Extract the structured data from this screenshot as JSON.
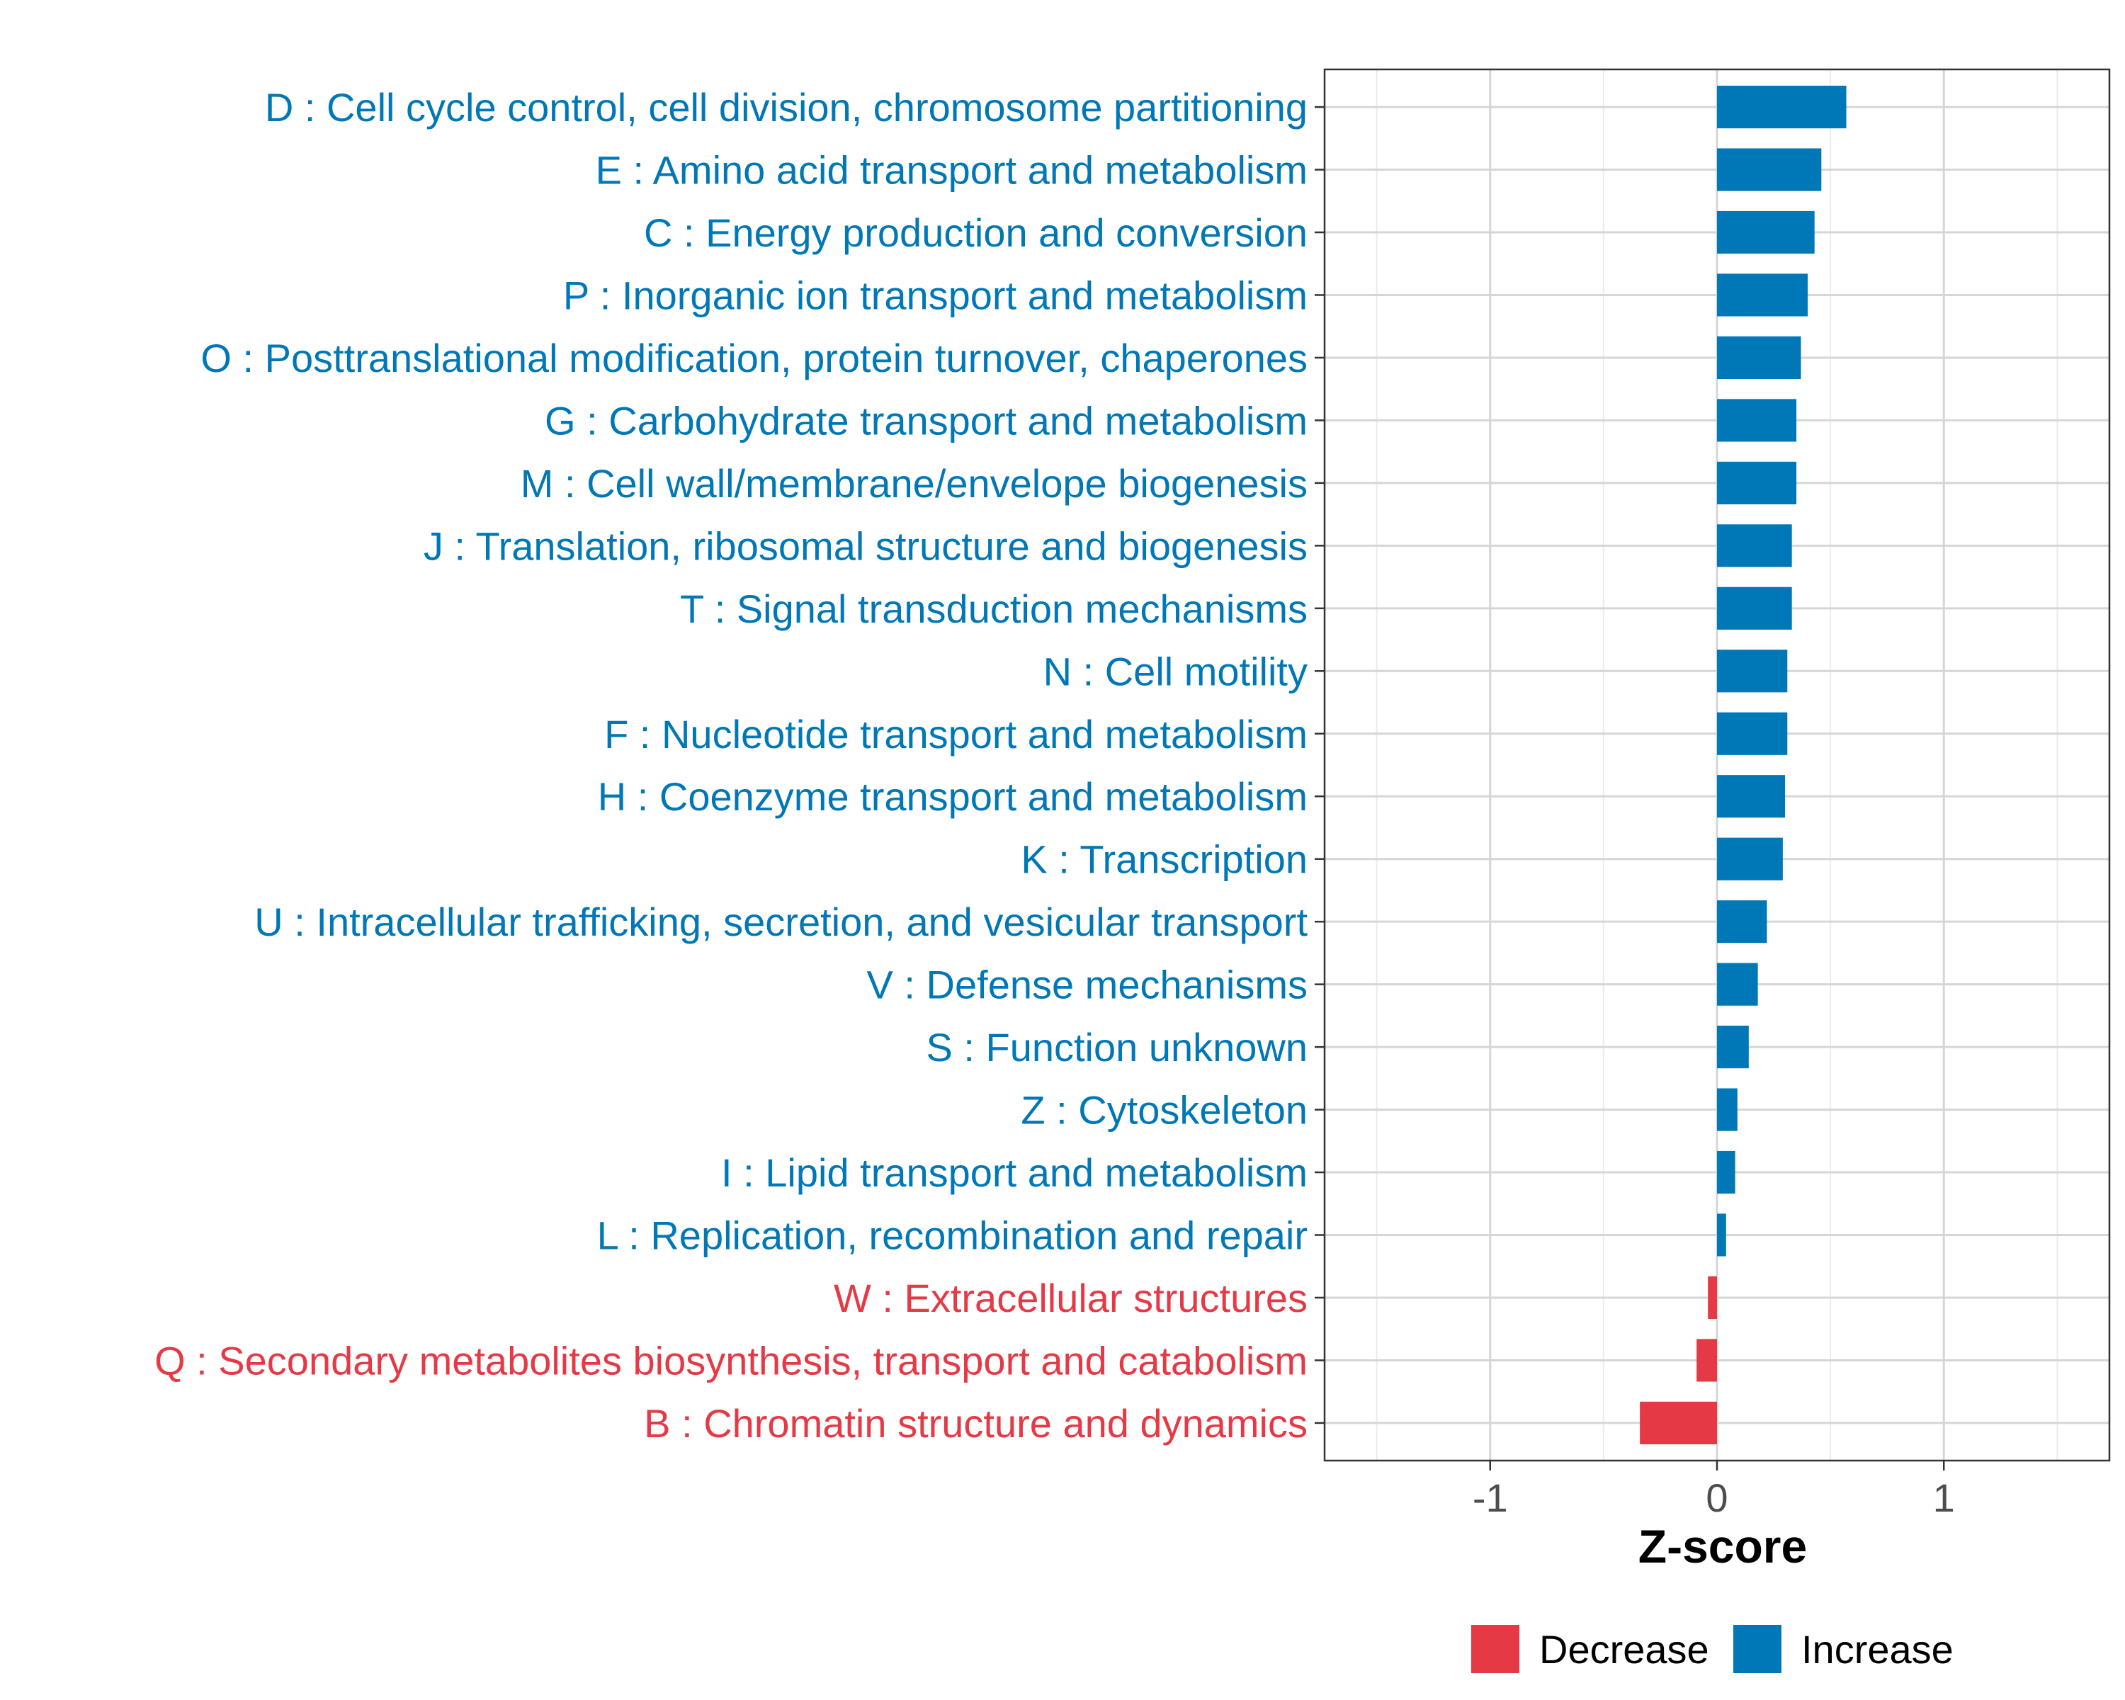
{
  "chart_data": {
    "type": "bar",
    "orientation": "horizontal",
    "title": "",
    "xlabel": "Z-score",
    "ylabel": "",
    "xlim": [
      -1.73,
      1.73
    ],
    "xticks": [
      -1,
      0,
      1
    ],
    "xtick_labels": [
      "-1",
      "0",
      "1"
    ],
    "grid": true,
    "legend_position": "bottom",
    "legend": [
      {
        "label": "Decrease",
        "color": "#E63946"
      },
      {
        "label": "Increase",
        "color": "#0077B6"
      }
    ],
    "categories": [
      "D : Cell cycle control, cell division, chromosome partitioning",
      "E : Amino acid transport and metabolism",
      "C : Energy production and conversion",
      "P : Inorganic ion transport and metabolism",
      "O : Posttranslational modification, protein turnover, chaperones",
      "G : Carbohydrate transport and metabolism",
      "M : Cell wall/membrane/envelope biogenesis",
      "J : Translation, ribosomal structure and biogenesis",
      "T : Signal transduction mechanisms",
      "N : Cell motility",
      "F : Nucleotide transport and metabolism",
      "H : Coenzyme transport and metabolism",
      "K : Transcription",
      "U : Intracellular trafficking, secretion, and vesicular transport",
      "V : Defense mechanisms",
      "S : Function unknown",
      "Z : Cytoskeleton",
      "I : Lipid transport and metabolism",
      "L : Replication, recombination and repair",
      "W : Extracellular structures",
      "Q : Secondary metabolites biosynthesis, transport and catabolism",
      "B : Chromatin structure and dynamics"
    ],
    "values": [
      0.57,
      0.46,
      0.43,
      0.4,
      0.37,
      0.35,
      0.35,
      0.33,
      0.33,
      0.31,
      0.31,
      0.3,
      0.29,
      0.22,
      0.18,
      0.14,
      0.09,
      0.08,
      0.04,
      -0.04,
      -0.09,
      -0.34
    ],
    "direction": [
      "Increase",
      "Increase",
      "Increase",
      "Increase",
      "Increase",
      "Increase",
      "Increase",
      "Increase",
      "Increase",
      "Increase",
      "Increase",
      "Increase",
      "Increase",
      "Increase",
      "Increase",
      "Increase",
      "Increase",
      "Increase",
      "Increase",
      "Decrease",
      "Decrease",
      "Decrease"
    ]
  }
}
